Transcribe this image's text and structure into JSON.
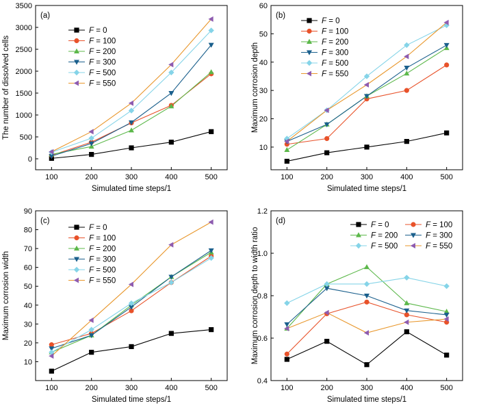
{
  "colors": {
    "F=0": "#000000",
    "F=100": "#e8522a",
    "F=200": "#5cb84a",
    "F=300": "#1a5f8c",
    "F=500": "#85d4e8",
    "F=550": "#8e5cb0",
    "orange_line": "#e8962a"
  },
  "chart_data": [
    {
      "type": "line",
      "panel": "(a)",
      "xlabel": "Simulated time steps/1",
      "ylabel": "The number of dissolved cells",
      "x": [
        100,
        200,
        300,
        400,
        500
      ],
      "xlim": [
        60,
        540
      ],
      "ylim": [
        -250,
        3500
      ],
      "yticks": [
        0,
        500,
        1000,
        1500,
        2000,
        2500,
        3000,
        3500
      ],
      "xticks": [
        100,
        200,
        300,
        400,
        500
      ],
      "legend_placement": "upper-left",
      "series": [
        {
          "name": "F = 0",
          "marker": "square",
          "values": [
            10,
            100,
            250,
            380,
            620
          ]
        },
        {
          "name": "F = 100",
          "marker": "circle",
          "values": [
            80,
            380,
            820,
            1220,
            1940
          ]
        },
        {
          "name": "F = 200",
          "marker": "triangle-up",
          "values": [
            100,
            280,
            650,
            1200,
            1980
          ]
        },
        {
          "name": "F = 300",
          "marker": "triangle-down",
          "values": [
            60,
            350,
            830,
            1500,
            2600
          ]
        },
        {
          "name": "F = 500",
          "marker": "diamond",
          "values": [
            150,
            470,
            1100,
            1970,
            2930
          ]
        },
        {
          "name": "F = 550",
          "marker": "triangle-left",
          "values": [
            160,
            620,
            1270,
            2150,
            3190
          ]
        }
      ]
    },
    {
      "type": "line",
      "panel": "(b)",
      "xlabel": "Simulated time steps/1",
      "ylabel": "Maximum corrosion depth",
      "x": [
        100,
        200,
        300,
        400,
        500
      ],
      "xlim": [
        60,
        540
      ],
      "ylim": [
        2,
        60
      ],
      "yticks": [
        10,
        20,
        30,
        40,
        50,
        60
      ],
      "xticks": [
        100,
        200,
        300,
        400,
        500
      ],
      "legend_placement": "upper-left",
      "series": [
        {
          "name": "F = 0",
          "marker": "square",
          "values": [
            5,
            8,
            10,
            12,
            15
          ]
        },
        {
          "name": "F = 100",
          "marker": "circle",
          "values": [
            11,
            13,
            27,
            30,
            39
          ]
        },
        {
          "name": "F = 200",
          "marker": "triangle-up",
          "values": [
            9,
            18,
            28,
            36,
            45
          ]
        },
        {
          "name": "F = 300",
          "marker": "triangle-down",
          "values": [
            12,
            18,
            28,
            38,
            46
          ]
        },
        {
          "name": "F = 500",
          "marker": "diamond",
          "values": [
            13,
            23,
            35,
            46,
            53
          ]
        },
        {
          "name": "F = 550",
          "marker": "triangle-left",
          "values": [
            12,
            23,
            32,
            42,
            54
          ]
        }
      ]
    },
    {
      "type": "line",
      "panel": "(c)",
      "xlabel": "Simulated time steps/1",
      "ylabel": "Maximum corrosion width",
      "x": [
        100,
        200,
        300,
        400,
        500
      ],
      "xlim": [
        60,
        540
      ],
      "ylim": [
        0,
        90
      ],
      "yticks": [
        10,
        20,
        30,
        40,
        50,
        60,
        70,
        80,
        90
      ],
      "xticks": [
        100,
        200,
        300,
        400,
        500
      ],
      "legend_placement": "upper-left",
      "series": [
        {
          "name": "F = 0",
          "marker": "square",
          "values": [
            5,
            15,
            18,
            25,
            27
          ]
        },
        {
          "name": "F = 100",
          "marker": "circle",
          "values": [
            19,
            25,
            37,
            52,
            66
          ]
        },
        {
          "name": "F = 200",
          "marker": "triangle-up",
          "values": [
            15,
            24,
            40,
            55,
            68
          ]
        },
        {
          "name": "F = 300",
          "marker": "triangle-down",
          "values": [
            17,
            24,
            39,
            55,
            69
          ]
        },
        {
          "name": "F = 500",
          "marker": "diamond",
          "values": [
            15,
            27,
            41,
            52,
            65
          ]
        },
        {
          "name": "F = 550",
          "marker": "triangle-left",
          "values": [
            13,
            32,
            51,
            72,
            84
          ]
        }
      ]
    },
    {
      "type": "line",
      "panel": "(d)",
      "xlabel": "Simulated time steps/1",
      "ylabel": "Maximum corrosion depth to width ratio",
      "x": [
        100,
        200,
        300,
        400,
        500
      ],
      "xlim": [
        60,
        540
      ],
      "ylim": [
        0.4,
        1.2
      ],
      "yticks": [
        0.4,
        0.6,
        0.8,
        1.0,
        1.2
      ],
      "ytick_labels": [
        "0.4",
        "0.6",
        "0.8",
        "1.0",
        "1.2"
      ],
      "xticks": [
        100,
        200,
        300,
        400,
        500
      ],
      "legend_placement": "top (two columns)",
      "series": [
        {
          "name": "F = 0",
          "marker": "square",
          "values": [
            0.5,
            0.585,
            0.475,
            0.63,
            0.52
          ]
        },
        {
          "name": "F = 100",
          "marker": "circle",
          "values": [
            0.525,
            0.715,
            0.77,
            0.71,
            0.675
          ]
        },
        {
          "name": "F = 200",
          "marker": "triangle-up",
          "values": [
            0.645,
            0.855,
            0.935,
            0.765,
            0.725
          ]
        },
        {
          "name": "F = 300",
          "marker": "triangle-down",
          "values": [
            0.665,
            0.835,
            0.8,
            0.73,
            0.71
          ]
        },
        {
          "name": "F = 500",
          "marker": "diamond",
          "values": [
            0.765,
            0.855,
            0.855,
            0.885,
            0.845
          ]
        },
        {
          "name": "F = 550",
          "marker": "triangle-left",
          "values": [
            0.645,
            0.72,
            0.625,
            0.675,
            0.69
          ]
        }
      ]
    }
  ]
}
